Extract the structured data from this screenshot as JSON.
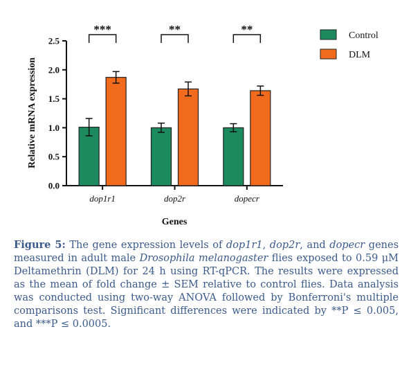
{
  "chart_data": {
    "type": "bar",
    "xlabel": "Genes",
    "ylabel": "Relative mRNA expression",
    "ylim": [
      0,
      2.5
    ],
    "yticks": [
      "0.0",
      "0.5",
      "1.0",
      "1.5",
      "2.0",
      "2.5"
    ],
    "categories": [
      "dop1r1",
      "dop2r",
      "dopecr"
    ],
    "series": [
      {
        "name": "Control",
        "color": "#1c8a5e",
        "values": [
          1.01,
          1.0,
          1.0
        ],
        "errors": [
          0.15,
          0.08,
          0.07
        ]
      },
      {
        "name": "DLM",
        "color": "#f26b1d",
        "values": [
          1.87,
          1.67,
          1.64
        ],
        "errors": [
          0.1,
          0.12,
          0.08
        ]
      }
    ],
    "significance": [
      "***",
      "**",
      "**"
    ],
    "error_bars": "SEM",
    "legend_position": "top-right",
    "grid": false
  },
  "caption": {
    "label": "Figure 5:",
    "parts": [
      {
        "text": " The gene expression levels of ",
        "italic": false
      },
      {
        "text": "dop1r1",
        "italic": true
      },
      {
        "text": ", ",
        "italic": false
      },
      {
        "text": "dop2r",
        "italic": true
      },
      {
        "text": ", and ",
        "italic": false
      },
      {
        "text": "dopecr",
        "italic": true
      },
      {
        "text": " genes measured in adult male ",
        "italic": false
      },
      {
        "text": "Drosophila melanogaster",
        "italic": true
      },
      {
        "text": " flies exposed to 0.59 μM Deltamethrin (DLM) for 24 h using RT-qPCR. The results were expressed as the mean of fold change ± SEM relative to control flies. Data analysis was conducted using two-way ANOVA followed by Bonferroni's multiple comparisons test. Significant differences were indicated by **P ≤ 0.005, and ***P ≤ 0.0005.",
        "italic": false
      }
    ]
  }
}
